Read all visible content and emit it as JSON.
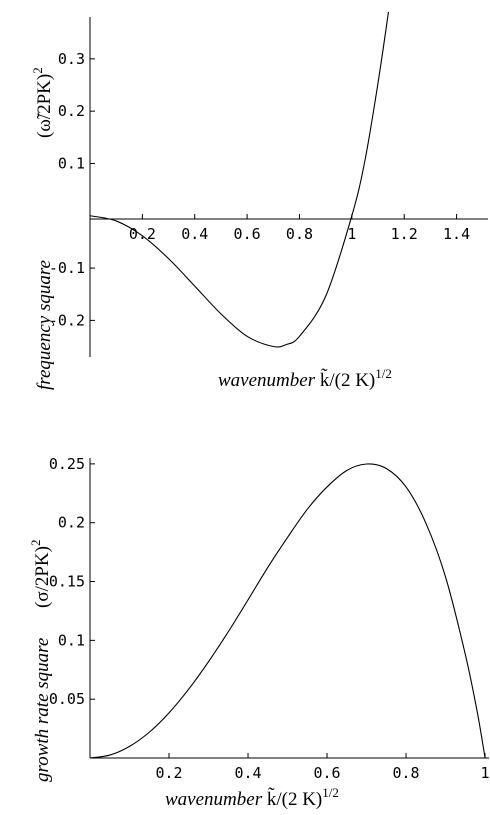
{
  "chart_data": [
    {
      "type": "line",
      "title": "",
      "ylabel_text": "frequency square",
      "ylabel_formula": "(ω̃/2PK)",
      "ylabel_formula_sup": "2",
      "xlabel_text": "wavenumber",
      "xlabel_formula": "k̃/(2 K)",
      "xlabel_formula_sup": "1/2",
      "xlim": [
        0,
        1.52
      ],
      "ylim": [
        -0.27,
        0.38
      ],
      "x_ticks": [
        0.2,
        0.4,
        0.6,
        0.8,
        1,
        1.2,
        1.4
      ],
      "x_tick_labels": [
        "0.2",
        "0.4",
        "0.6",
        "0.8",
        "1",
        "1.2",
        "1.4"
      ],
      "y_ticks": [
        -0.2,
        -0.1,
        0.1,
        0.2,
        0.3
      ],
      "y_tick_labels": [
        "-0.2",
        "-0.1",
        "0.1",
        "0.2",
        "0.3"
      ],
      "grid": false,
      "series": [
        {
          "x": [
            0,
            0.1,
            0.2,
            0.3,
            0.4,
            0.5,
            0.6,
            0.7,
            0.75,
            0.8,
            0.9,
            1.0,
            1.05,
            1.1,
            1.14
          ],
          "y": [
            0,
            -0.0099,
            -0.0384,
            -0.0819,
            -0.1344,
            -0.1875,
            -0.2304,
            -0.2499,
            -0.2461,
            -0.2304,
            -0.1539,
            0,
            0.1055,
            0.2541,
            0.3898
          ]
        }
      ]
    },
    {
      "type": "line",
      "title": "",
      "ylabel_text": "growth rate square",
      "ylabel_formula": "(σ/2PK)",
      "ylabel_formula_sup": "2",
      "xlabel_text": "wavenumber",
      "xlabel_formula": "k̃/(2 K)",
      "xlabel_formula_sup": "1/2",
      "xlim": [
        0,
        1.01
      ],
      "ylim": [
        0,
        0.255
      ],
      "x_ticks": [
        0.2,
        0.4,
        0.6,
        0.8,
        1
      ],
      "x_tick_labels": [
        "0.2",
        "0.4",
        "0.6",
        "0.8",
        "1"
      ],
      "y_ticks": [
        0.05,
        0.1,
        0.15,
        0.2,
        0.25
      ],
      "y_tick_labels": [
        "0.05",
        "0.1",
        "0.15",
        "0.2",
        "0.25"
      ],
      "grid": false,
      "series": [
        {
          "x": [
            0,
            0.05,
            0.1,
            0.15,
            0.2,
            0.25,
            0.3,
            0.35,
            0.4,
            0.45,
            0.5,
            0.55,
            0.6,
            0.65,
            0.7,
            0.75,
            0.8,
            0.85,
            0.9,
            0.95,
            0.98,
            1.0
          ],
          "y": [
            0,
            0.0025,
            0.0099,
            0.0219,
            0.0384,
            0.0586,
            0.0819,
            0.1073,
            0.1344,
            0.162,
            0.1875,
            0.2114,
            0.2304,
            0.2444,
            0.2499,
            0.2461,
            0.2304,
            0.1998,
            0.1539,
            0.0881,
            0.0396,
            0
          ]
        }
      ]
    }
  ]
}
